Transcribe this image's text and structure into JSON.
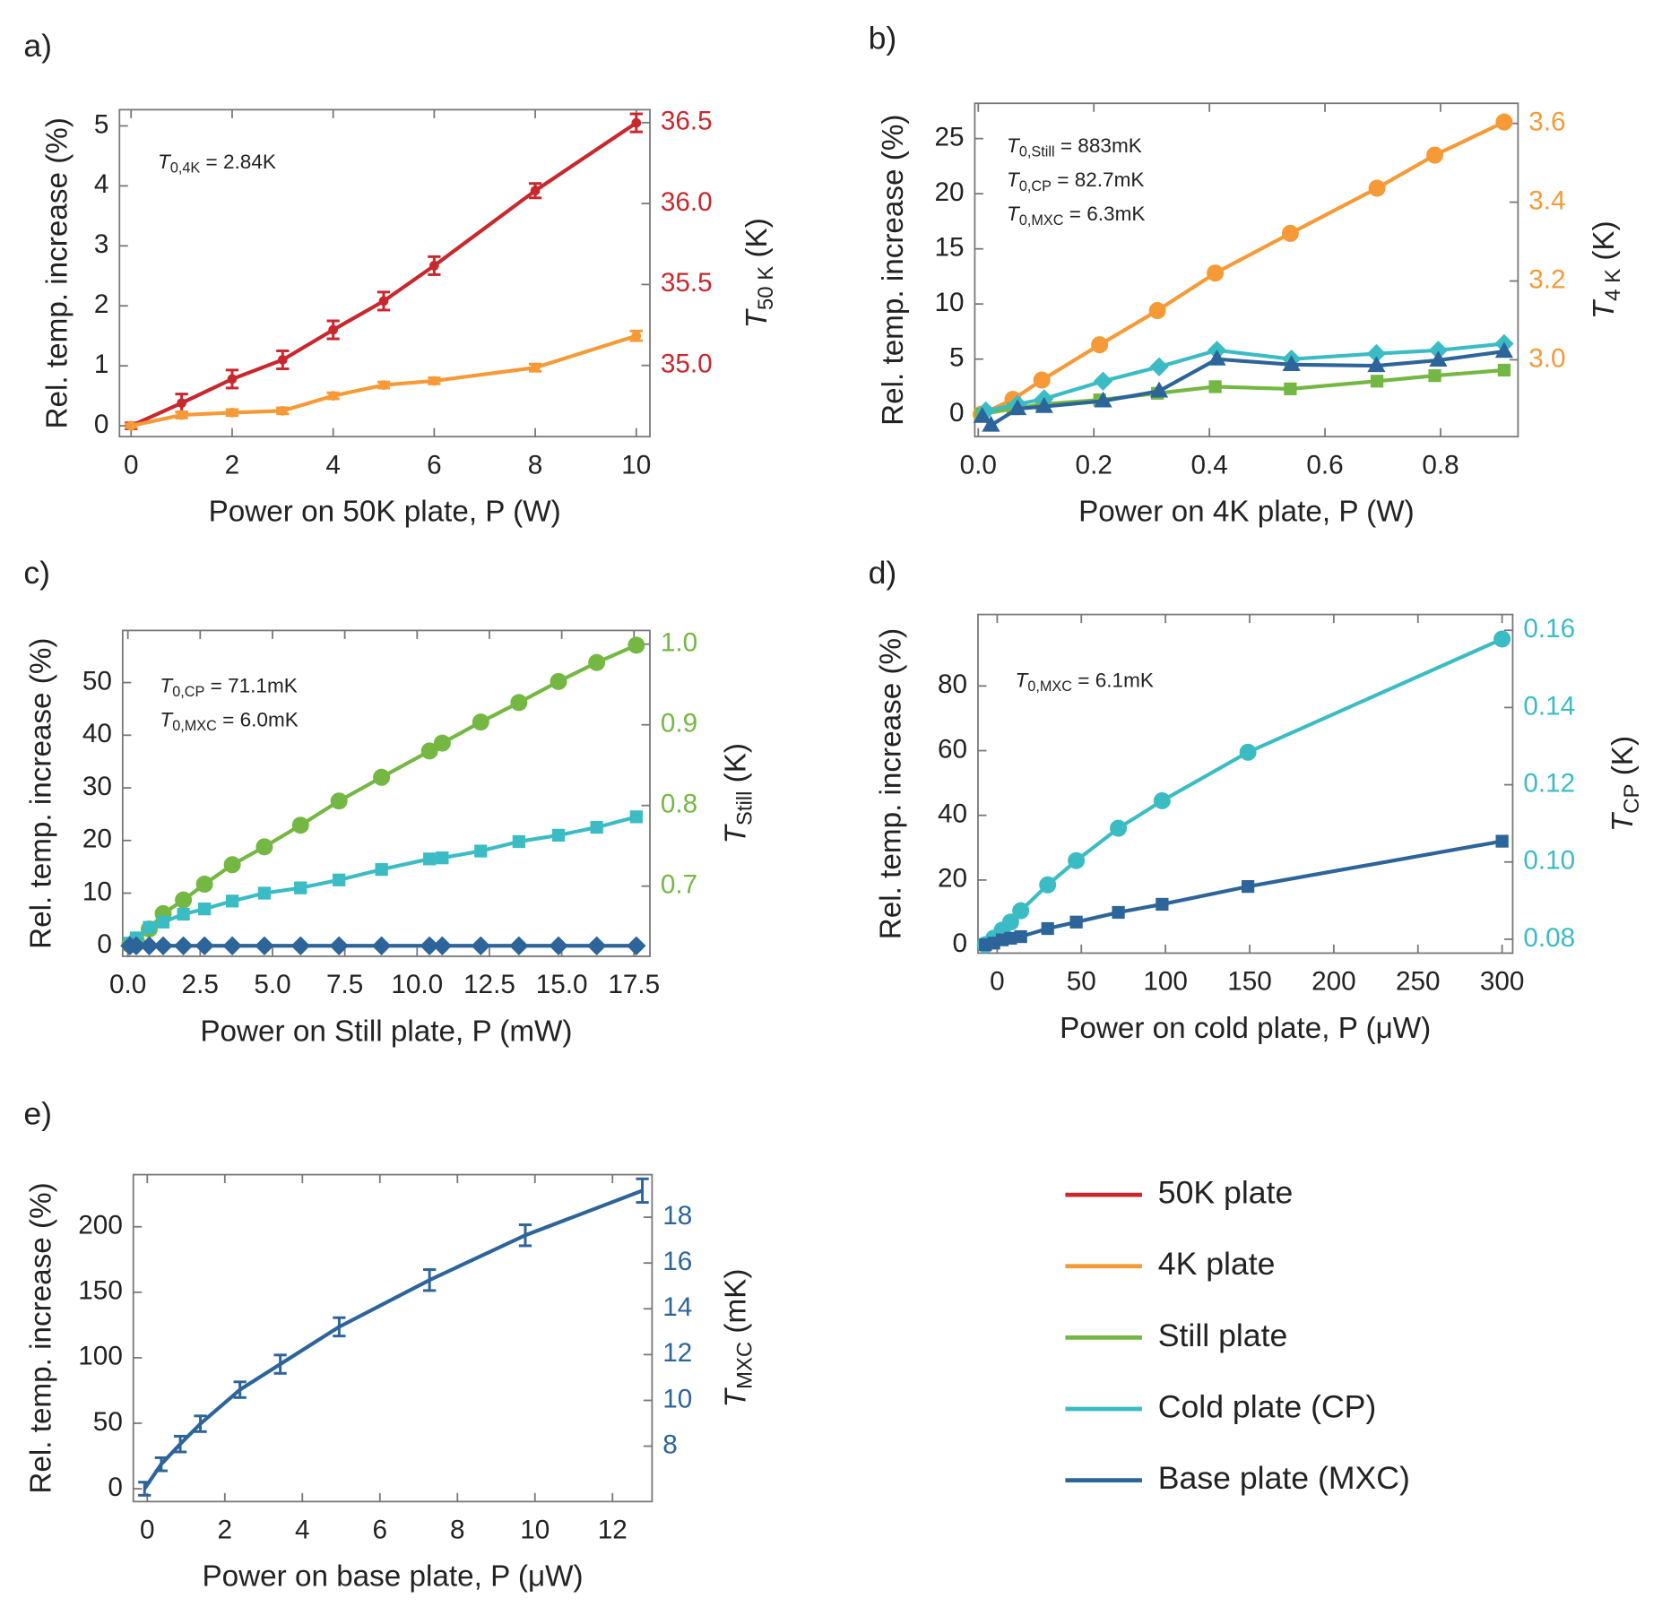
{
  "chart_data": [
    {
      "type": "line",
      "label": "a)",
      "xlabel": "Power on 50K plate, P (W)",
      "ylabel": "Rel. temp. increase (%)",
      "y2label": {
        "symbol": "T",
        "subscript": "50 K",
        "unit": " (K)"
      },
      "annotations": [
        {
          "symbol": "T",
          "subscript": "0,4K",
          "text": " = 2.84K"
        }
      ],
      "xlim": [
        -0.23,
        10.27
      ],
      "xticks": [
        0,
        2,
        4,
        6,
        8,
        10
      ],
      "ylim": [
        -0.18,
        5.27
      ],
      "yticks": [
        0,
        1,
        2,
        3,
        4,
        5
      ],
      "y2lim": [
        34.56,
        36.58
      ],
      "y2ticks": [
        {
          "value": 35,
          "label": "35.0"
        },
        35.5,
        {
          "value": 36,
          "label": "36.0"
        },
        36.5
      ],
      "y2color": "#c8282d",
      "series": [
        {
          "color": "#c8282d",
          "marker": "dot",
          "x": [
            0,
            1,
            2,
            3,
            4,
            5,
            6,
            8,
            10
          ],
          "values": [
            0,
            0.38,
            0.78,
            1.1,
            1.6,
            2.08,
            2.67,
            3.92,
            5.05
          ],
          "errors": [
            0.05,
            0.15,
            0.15,
            0.15,
            0.15,
            0.15,
            0.15,
            0.12,
            0.15
          ]
        },
        {
          "color": "#f59a36",
          "marker": "dot",
          "x": [
            0,
            1,
            2,
            3,
            4,
            5,
            6,
            8,
            10
          ],
          "values": [
            0,
            0.18,
            0.22,
            0.25,
            0.5,
            0.68,
            0.75,
            0.97,
            1.5
          ],
          "errors": [
            0.03,
            0.05,
            0.05,
            0.05,
            0.05,
            0.05,
            0.05,
            0.06,
            0.08
          ]
        }
      ]
    },
    {
      "type": "line",
      "label": "b)",
      "xlabel": "Power on 4K plate, P (W)",
      "ylabel": "Rel. temp. increase (%)",
      "y2label": {
        "symbol": "T",
        "subscript": "4 K",
        "unit": " (K)"
      },
      "annotations": [
        {
          "symbol": "T",
          "subscript": "0,Still",
          "text": " = 883mK"
        },
        {
          "symbol": "T",
          "subscript": "0,CP",
          "text": " = 82.7mK"
        },
        {
          "symbol": "T",
          "subscript": "0,MXC",
          "text": " = 6.3mK"
        }
      ],
      "xlim": [
        -0.006,
        0.934
      ],
      "xticks": [
        {
          "value": 0,
          "label": "0.0"
        },
        0.2,
        0.4,
        0.6,
        0.8
      ],
      "ylim": [
        -2.03,
        28.2
      ],
      "yticks": [
        0,
        5,
        10,
        15,
        20,
        25
      ],
      "y2lim": [
        2.805,
        3.651
      ],
      "y2ticks": [
        {
          "value": 3,
          "label": "3.0"
        },
        3.2,
        3.4,
        3.6
      ],
      "y2color": "#f59a36",
      "series": [
        {
          "color": "#f59a36",
          "marker": "circle",
          "x": [
            0.005,
            0.06,
            0.11,
            0.21,
            0.31,
            0.41,
            0.54,
            0.69,
            0.79,
            0.91
          ],
          "values": [
            0,
            1.35,
            3.1,
            6.3,
            9.4,
            12.8,
            16.4,
            20.5,
            23.5,
            26.5
          ]
        },
        {
          "color": "#74b843",
          "marker": "square",
          "x": [
            0.005,
            0.06,
            0.11,
            0.21,
            0.31,
            0.41,
            0.54,
            0.69,
            0.79,
            0.91
          ],
          "values": [
            0,
            0.5,
            0.9,
            1.3,
            1.9,
            2.5,
            2.3,
            3.0,
            3.5,
            4.0
          ]
        },
        {
          "color": "#3bbcc4",
          "marker": "diamond",
          "x": [
            0.013,
            0.068,
            0.114,
            0.216,
            0.313,
            0.413,
            0.542,
            0.689,
            0.796,
            0.91
          ],
          "values": [
            0.3,
            0.9,
            1.4,
            3.0,
            4.3,
            5.8,
            5.0,
            5.5,
            5.8,
            6.4
          ]
        },
        {
          "color": "#2d6499",
          "marker": "triangle",
          "x": [
            0.007,
            0.022,
            0.068,
            0.114,
            0.216,
            0.313,
            0.413,
            0.542,
            0.689,
            0.796,
            0.91
          ],
          "values": [
            -0.2,
            -1.0,
            0.5,
            0.7,
            1.2,
            2.1,
            5.0,
            4.5,
            4.4,
            4.9,
            5.7
          ]
        }
      ]
    },
    {
      "type": "line",
      "label": "c)",
      "xlabel": "Power on Still plate, P (mW)",
      "ylabel": "Rel. temp. increase (%)",
      "y2label": {
        "symbol": "T",
        "subscript": "Still",
        "unit": " (K)"
      },
      "annotations": [
        {
          "symbol": "T",
          "subscript": "0,CP",
          "text": " = 71.1mK"
        },
        {
          "symbol": "T",
          "subscript": "0,MXC",
          "text": " = 6.0mK"
        }
      ],
      "xlim": [
        -0.18,
        18.05
      ],
      "xticks": [
        {
          "value": 0,
          "label": "0.0"
        },
        2.5,
        {
          "value": 5,
          "label": "5.0"
        },
        7.5,
        {
          "value": 10,
          "label": "10.0"
        },
        12.5,
        {
          "value": 15,
          "label": "15.0"
        },
        17.5
      ],
      "ylim": [
        -2.0,
        59.9
      ],
      "yticks": [
        0,
        10,
        20,
        30,
        40,
        50
      ],
      "y2lim": [
        0.613,
        1.017
      ],
      "y2ticks": [
        0.7,
        0.8,
        0.9,
        {
          "value": 1,
          "label": "1.0"
        }
      ],
      "y2color": "#74b843",
      "series": [
        {
          "color": "#74b843",
          "marker": "circle",
          "x": [
            0.07,
            0.29,
            0.74,
            1.22,
            1.92,
            2.65,
            3.61,
            4.72,
            5.97,
            7.3,
            8.77,
            10.43,
            10.87,
            12.2,
            13.52,
            14.89,
            16.21,
            17.58
          ],
          "values": [
            0.2,
            1.0,
            3.2,
            6.1,
            8.7,
            11.7,
            15.4,
            18.8,
            22.9,
            27.5,
            32.0,
            37.0,
            38.5,
            42.5,
            46.2,
            50.2,
            53.8,
            57.1
          ]
        },
        {
          "color": "#3bbcc4",
          "marker": "square",
          "x": [
            0.07,
            0.29,
            0.74,
            1.22,
            1.92,
            2.65,
            3.61,
            4.72,
            5.97,
            7.3,
            8.77,
            10.43,
            10.87,
            12.2,
            13.52,
            14.89,
            16.21,
            17.58
          ],
          "values": [
            0.5,
            1.5,
            3.5,
            4.5,
            6.0,
            7.0,
            8.5,
            10.0,
            11.0,
            12.5,
            14.5,
            16.5,
            16.7,
            18.0,
            19.8,
            21.0,
            22.5,
            24.5
          ]
        },
        {
          "color": "#2d6499",
          "marker": "diamond",
          "x": [
            0.07,
            0.29,
            0.74,
            1.22,
            1.92,
            2.65,
            3.61,
            4.72,
            5.97,
            7.3,
            8.77,
            10.43,
            10.87,
            12.2,
            13.52,
            14.89,
            16.21,
            17.58
          ],
          "values": [
            0,
            0,
            0,
            0,
            0,
            0,
            0,
            0,
            0,
            0,
            0,
            0,
            0,
            0,
            0,
            0,
            0,
            0
          ]
        }
      ]
    },
    {
      "type": "line",
      "label": "d)",
      "xlabel": "Power on cold plate, P (μW)",
      "ylabel": "Rel. temp. increase (%)",
      "y2label": {
        "symbol": "T",
        "subscript": "CP",
        "unit": " (K)"
      },
      "annotations": [
        {
          "symbol": "T",
          "subscript": "0,MXC",
          "text": " = 6.1mK"
        }
      ],
      "xlim": [
        -11.4,
        306.3
      ],
      "xticks": [
        0,
        50,
        100,
        150,
        200,
        250,
        300
      ],
      "ylim": [
        -2.6,
        102.1
      ],
      "yticks": [
        0,
        20,
        40,
        60,
        80
      ],
      "y2lim": [
        0.0764,
        0.1641
      ],
      "y2ticks": [
        0.08,
        {
          "value": 0.1,
          "label": "0.10"
        },
        0.12,
        0.14,
        0.16
      ],
      "y2color": "#3bbcc4",
      "series": [
        {
          "color": "#3bbcc4",
          "marker": "circle",
          "x": [
            -7,
            -2,
            3,
            8,
            14,
            30,
            47,
            72,
            98,
            149,
            300
          ],
          "values": [
            0,
            2,
            4.5,
            7,
            10.5,
            18.5,
            26,
            36,
            44.5,
            59.5,
            94.5
          ]
        },
        {
          "color": "#2d6499",
          "marker": "square",
          "x": [
            -7,
            -2,
            3,
            8,
            14,
            30,
            47,
            72,
            98,
            149,
            300
          ],
          "values": [
            0,
            0.5,
            1.5,
            2,
            2.5,
            5,
            7,
            10,
            12.5,
            18,
            32
          ]
        }
      ]
    },
    {
      "type": "line",
      "label": "e)",
      "xlabel": "Power on base plate, P (μW)",
      "ylabel": "Rel. temp. increase (%)",
      "y2label": {
        "symbol": "T",
        "subscript": "MXC",
        "unit": " (mK)"
      },
      "annotations": [],
      "xlim": [
        -0.36,
        13.02
      ],
      "xticks": [
        0,
        2,
        4,
        6,
        8,
        10,
        12
      ],
      "ylim": [
        -9.8,
        239.8
      ],
      "yticks": [
        0,
        50,
        100,
        150,
        200
      ],
      "y2lim": [
        5.58,
        19.86
      ],
      "y2ticks": [
        8,
        10,
        12,
        14,
        16,
        18
      ],
      "y2color": "#2d6499",
      "series": [
        {
          "color": "#2d6499",
          "marker": "none",
          "x": [
            -0.07,
            0.36,
            0.85,
            1.37,
            2.39,
            3.43,
            4.95,
            7.28,
            9.75,
            12.77
          ],
          "values": [
            0,
            18.7,
            34.1,
            49.6,
            75.6,
            95.1,
            123.6,
            159.3,
            193.5,
            227.6
          ],
          "errors": [
            5,
            5,
            6,
            6,
            6,
            7,
            7,
            8,
            8,
            9
          ]
        }
      ]
    }
  ],
  "legend": {
    "entries": [
      {
        "name": "50K plate",
        "color": "#c8282d"
      },
      {
        "name": "4K plate",
        "color": "#f59a36"
      },
      {
        "name": "Still plate",
        "color": "#74b843"
      },
      {
        "name": "Cold plate (CP)",
        "color": "#3bbcc4"
      },
      {
        "name": "Base plate (MXC)",
        "color": "#2d6499"
      }
    ]
  }
}
